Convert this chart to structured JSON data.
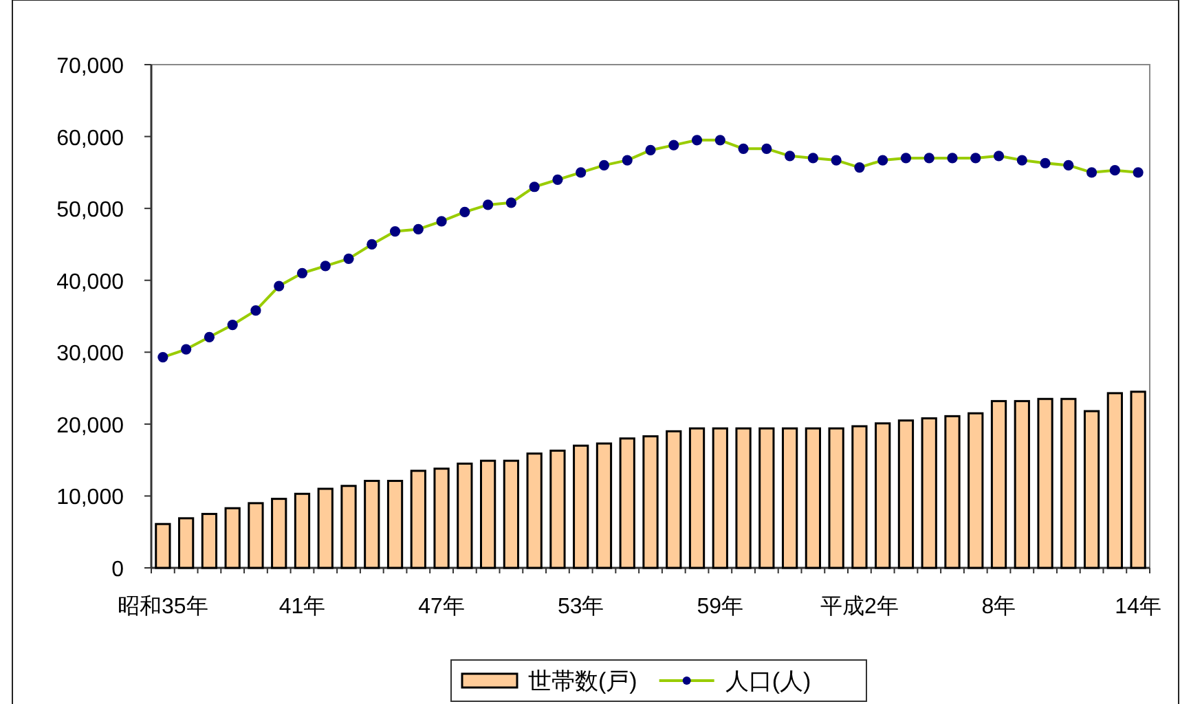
{
  "chart_data": {
    "type": "bar",
    "categories": [
      "昭和35年",
      null,
      null,
      null,
      null,
      null,
      "41年",
      null,
      null,
      null,
      null,
      null,
      "47年",
      null,
      null,
      null,
      null,
      null,
      "53年",
      null,
      null,
      null,
      null,
      null,
      "59年",
      null,
      null,
      null,
      null,
      null,
      "平成2年",
      null,
      null,
      null,
      null,
      null,
      "8年",
      null,
      null,
      null,
      null,
      null,
      "14年"
    ],
    "series": [
      {
        "name": "世帯数(戸)",
        "color": "#ffcc99",
        "values": [
          6100,
          6900,
          7500,
          8300,
          9000,
          9600,
          10300,
          11000,
          11400,
          12100,
          12100,
          13500,
          13800,
          14500,
          14900,
          14900,
          15900,
          16300,
          17000,
          17300,
          18000,
          18300,
          19000,
          19400,
          19400,
          19400,
          19400,
          19400,
          19400,
          19400,
          19700,
          20100,
          20500,
          20800,
          21100,
          21500,
          23200,
          23200,
          23500,
          23500,
          21800,
          24300,
          24500
        ]
      },
      {
        "name": "人口(人)",
        "type": "line",
        "color": "#99cc00",
        "marker": "circle",
        "values": [
          29300,
          30400,
          32100,
          33800,
          35800,
          39200,
          41000,
          42000,
          43000,
          45000,
          46800,
          47100,
          48200,
          49500,
          50500,
          50800,
          53000,
          54000,
          55000,
          56000,
          56700,
          58100,
          58800,
          59500,
          59500,
          58300,
          58300,
          57300,
          57000,
          56700,
          55700,
          56700,
          57000,
          57000,
          57000,
          57000,
          57300,
          56700,
          56300,
          56000,
          55000,
          55300,
          55000
        ]
      }
    ],
    "ylim": [
      0,
      70000
    ],
    "yticks": [
      {
        "value": 0,
        "label": "0"
      },
      {
        "value": 10000,
        "label": "10,000"
      },
      {
        "value": 20000,
        "label": "20,000"
      },
      {
        "value": 30000,
        "label": "30,000"
      },
      {
        "value": 40000,
        "label": "40,000"
      },
      {
        "value": 50000,
        "label": "50,000"
      },
      {
        "value": 60000,
        "label": "60,000"
      },
      {
        "value": 70000,
        "label": "70,000"
      }
    ],
    "grid": false,
    "legend": "bottom"
  }
}
